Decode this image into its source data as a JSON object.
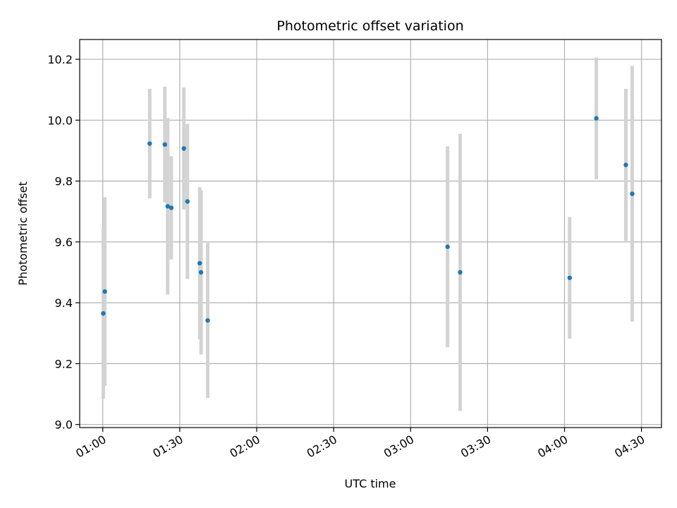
{
  "chart_data": {
    "type": "scatter",
    "title": "Photometric offset variation",
    "xlabel": "UTC time",
    "ylabel": "Photometric offset",
    "x_ticks": [
      "01:00",
      "01:30",
      "02:00",
      "02:30",
      "03:00",
      "03:30",
      "04:00",
      "04:30"
    ],
    "x_tick_minutes": [
      60,
      90,
      120,
      150,
      180,
      210,
      240,
      270
    ],
    "y_ticks": [
      "9.0",
      "9.2",
      "9.4",
      "9.6",
      "9.8",
      "10.0",
      "10.2"
    ],
    "xlim_minutes": [
      51,
      277.8
    ],
    "ylim": [
      8.99,
      10.265
    ],
    "grid": true,
    "marker_color": "#1f77b4",
    "errorbar_color": "#d3d3d3",
    "points": [
      {
        "t": 60.2,
        "y": 9.365,
        "err": 0.28
      },
      {
        "t": 60.8,
        "y": 9.437,
        "err": 0.31
      },
      {
        "t": 78.3,
        "y": 9.923,
        "err": 0.18
      },
      {
        "t": 84.2,
        "y": 9.92,
        "err": 0.19
      },
      {
        "t": 85.3,
        "y": 9.717,
        "err": 0.29
      },
      {
        "t": 86.7,
        "y": 9.712,
        "err": 0.17
      },
      {
        "t": 91.6,
        "y": 9.907,
        "err": 0.2
      },
      {
        "t": 93.0,
        "y": 9.733,
        "err": 0.255
      },
      {
        "t": 97.8,
        "y": 9.53,
        "err": 0.25
      },
      {
        "t": 98.3,
        "y": 9.5,
        "err": 0.27
      },
      {
        "t": 100.9,
        "y": 9.342,
        "err": 0.255
      },
      {
        "t": 194.4,
        "y": 9.584,
        "err": 0.33
      },
      {
        "t": 199.3,
        "y": 9.5,
        "err": 0.455
      },
      {
        "t": 242.0,
        "y": 9.482,
        "err": 0.2
      },
      {
        "t": 252.4,
        "y": 10.006,
        "err": 0.2
      },
      {
        "t": 263.9,
        "y": 9.853,
        "err": 0.25
      },
      {
        "t": 266.4,
        "y": 9.758,
        "err": 0.42
      }
    ]
  }
}
